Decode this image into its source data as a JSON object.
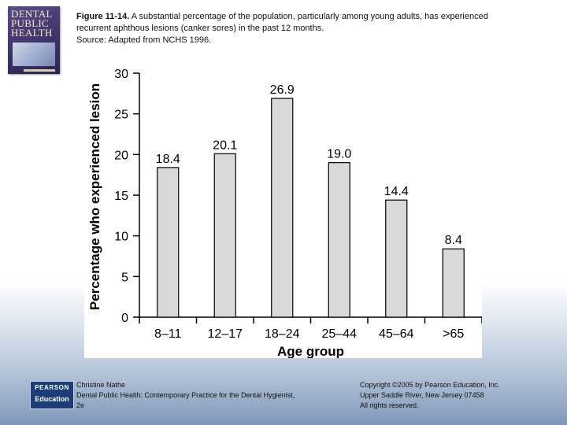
{
  "book": {
    "title_line1": "DENTAL",
    "title_line2": "PUBLIC",
    "title_line3": "HEALTH"
  },
  "caption": {
    "figure_label": "Figure 11-14.",
    "text_line1": " A substantial percentage of the population, particularly among young adults, has experienced",
    "text_line2": "recurrent aphthous lesions (canker sores) in the past 12 months.",
    "text_line3": "Source: Adapted from NCHS 1996."
  },
  "chart_data": {
    "type": "bar",
    "categories": [
      "8–11",
      "12–17",
      "18–24",
      "25–44",
      "45–64",
      ">65"
    ],
    "values": [
      18.4,
      20.1,
      26.9,
      19.0,
      14.4,
      8.4
    ],
    "value_labels": [
      "18.4",
      "20.1",
      "26.9",
      "19.0",
      "14.4",
      "8.4"
    ],
    "title": "",
    "xlabel": "Age group",
    "ylabel": "Percentage who experienced lesion",
    "ylim": [
      0,
      30
    ],
    "yticks": [
      0,
      5,
      10,
      15,
      20,
      25,
      30
    ],
    "bar_color": "#d9d9d9",
    "bar_stroke": "#000000",
    "grid": false,
    "legend": "none"
  },
  "footer": {
    "logo_line1": "PEARSON",
    "logo_line2": "Education",
    "left_line1": "Christine Nathe",
    "left_line2": "Dental Public Health: Contemporary Practice for the Dental Hygienist,",
    "left_line3": "2e",
    "right_line1": "Copyright ©2005 by Pearson Education, Inc.",
    "right_line2": "Upper Saddle River, New Jersey 07458",
    "right_line3": "All rights reserved."
  }
}
